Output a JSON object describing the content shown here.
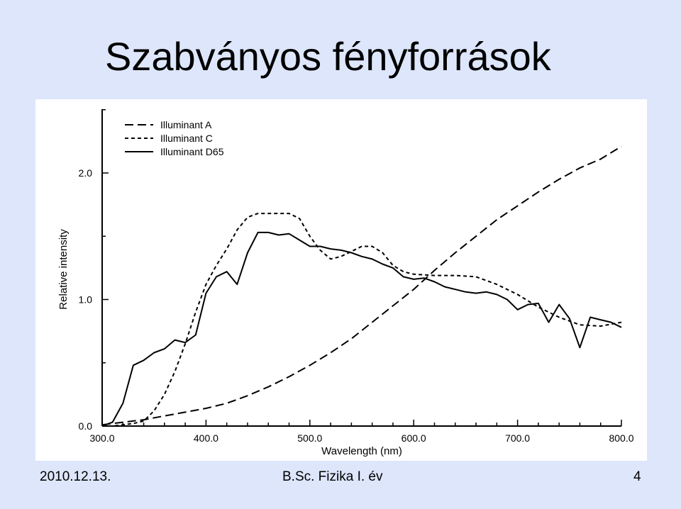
{
  "slide": {
    "title": "Szabványos fényforrások",
    "footer_date": "2010.12.13.",
    "footer_course": "B.Sc. Fizika I. év",
    "page_number": "4"
  },
  "chart_data": {
    "type": "line",
    "xlabel": "Wavelength (nm)",
    "ylabel": "Relative intensity",
    "xlim": [
      300,
      800
    ],
    "ylim": [
      0,
      2.5
    ],
    "x_ticks": [
      "300.0",
      "400.0",
      "500.0",
      "600.0",
      "700.0",
      "800.0"
    ],
    "y_ticks": [
      "0.0",
      "1.0",
      "2.0"
    ],
    "grid": false,
    "legend_position": "top-left",
    "series": [
      {
        "name": "Illuminant A",
        "style": "long-dash",
        "color": "#000000",
        "points": [
          [
            300,
            0.01
          ],
          [
            320,
            0.03
          ],
          [
            340,
            0.05
          ],
          [
            360,
            0.08
          ],
          [
            380,
            0.11
          ],
          [
            400,
            0.14
          ],
          [
            420,
            0.18
          ],
          [
            440,
            0.24
          ],
          [
            460,
            0.31
          ],
          [
            480,
            0.39
          ],
          [
            500,
            0.48
          ],
          [
            520,
            0.58
          ],
          [
            540,
            0.69
          ],
          [
            560,
            0.82
          ],
          [
            580,
            0.95
          ],
          [
            600,
            1.08
          ],
          [
            620,
            1.23
          ],
          [
            640,
            1.37
          ],
          [
            660,
            1.5
          ],
          [
            680,
            1.63
          ],
          [
            700,
            1.74
          ],
          [
            720,
            1.85
          ],
          [
            740,
            1.95
          ],
          [
            760,
            2.04
          ],
          [
            780,
            2.11
          ],
          [
            800,
            2.21
          ]
        ]
      },
      {
        "name": "Illuminant C",
        "style": "short-dash",
        "color": "#000000",
        "points": [
          [
            300,
            0.0
          ],
          [
            310,
            0.0
          ],
          [
            320,
            0.01
          ],
          [
            330,
            0.02
          ],
          [
            340,
            0.04
          ],
          [
            350,
            0.12
          ],
          [
            360,
            0.25
          ],
          [
            370,
            0.43
          ],
          [
            380,
            0.65
          ],
          [
            390,
            0.9
          ],
          [
            400,
            1.12
          ],
          [
            410,
            1.27
          ],
          [
            420,
            1.4
          ],
          [
            430,
            1.55
          ],
          [
            440,
            1.65
          ],
          [
            450,
            1.68
          ],
          [
            460,
            1.68
          ],
          [
            470,
            1.68
          ],
          [
            480,
            1.68
          ],
          [
            490,
            1.64
          ],
          [
            500,
            1.5
          ],
          [
            510,
            1.39
          ],
          [
            520,
            1.32
          ],
          [
            530,
            1.34
          ],
          [
            540,
            1.38
          ],
          [
            550,
            1.42
          ],
          [
            560,
            1.42
          ],
          [
            570,
            1.37
          ],
          [
            580,
            1.27
          ],
          [
            590,
            1.22
          ],
          [
            600,
            1.2
          ],
          [
            620,
            1.19
          ],
          [
            640,
            1.19
          ],
          [
            660,
            1.18
          ],
          [
            680,
            1.12
          ],
          [
            700,
            1.04
          ],
          [
            720,
            0.94
          ],
          [
            740,
            0.86
          ],
          [
            760,
            0.8
          ],
          [
            780,
            0.79
          ],
          [
            800,
            0.82
          ]
        ]
      },
      {
        "name": "Illuminant D65",
        "style": "solid",
        "color": "#000000",
        "points": [
          [
            300,
            0.0
          ],
          [
            310,
            0.03
          ],
          [
            320,
            0.18
          ],
          [
            330,
            0.48
          ],
          [
            340,
            0.52
          ],
          [
            350,
            0.58
          ],
          [
            360,
            0.61
          ],
          [
            370,
            0.68
          ],
          [
            380,
            0.66
          ],
          [
            390,
            0.72
          ],
          [
            400,
            1.05
          ],
          [
            410,
            1.18
          ],
          [
            420,
            1.22
          ],
          [
            430,
            1.12
          ],
          [
            440,
            1.37
          ],
          [
            450,
            1.53
          ],
          [
            460,
            1.53
          ],
          [
            470,
            1.51
          ],
          [
            480,
            1.52
          ],
          [
            490,
            1.47
          ],
          [
            500,
            1.42
          ],
          [
            510,
            1.42
          ],
          [
            520,
            1.4
          ],
          [
            530,
            1.39
          ],
          [
            540,
            1.37
          ],
          [
            550,
            1.34
          ],
          [
            560,
            1.32
          ],
          [
            570,
            1.28
          ],
          [
            580,
            1.25
          ],
          [
            590,
            1.18
          ],
          [
            600,
            1.16
          ],
          [
            610,
            1.17
          ],
          [
            620,
            1.14
          ],
          [
            630,
            1.1
          ],
          [
            640,
            1.08
          ],
          [
            650,
            1.06
          ],
          [
            660,
            1.05
          ],
          [
            670,
            1.06
          ],
          [
            680,
            1.04
          ],
          [
            690,
            1.0
          ],
          [
            700,
            0.92
          ],
          [
            710,
            0.96
          ],
          [
            720,
            0.97
          ],
          [
            730,
            0.82
          ],
          [
            740,
            0.96
          ],
          [
            750,
            0.85
          ],
          [
            760,
            0.62
          ],
          [
            770,
            0.86
          ],
          [
            780,
            0.84
          ],
          [
            790,
            0.82
          ],
          [
            800,
            0.78
          ]
        ]
      }
    ]
  }
}
